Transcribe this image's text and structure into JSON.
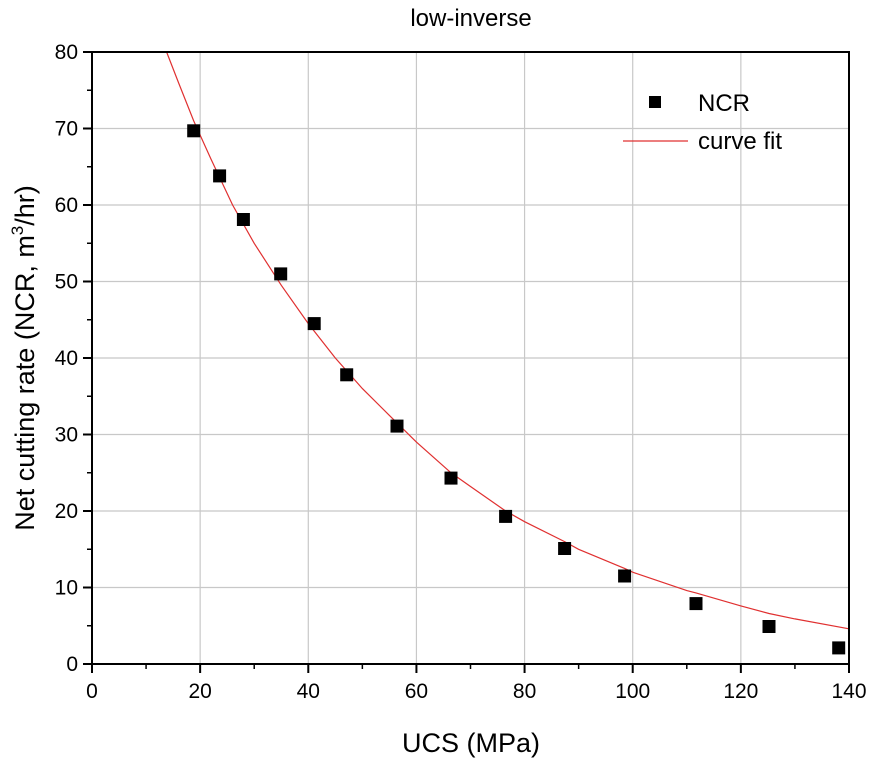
{
  "chart_data": {
    "type": "scatter",
    "title": "low-inverse",
    "xlabel": "UCS (MPa)",
    "ylabel_main": "Net cutting rate (NCR, m",
    "ylabel_sup": "3",
    "ylabel_tail": "/hr)",
    "xlim": [
      0,
      140
    ],
    "ylim": [
      0,
      80
    ],
    "xticks": [
      0,
      20,
      40,
      60,
      80,
      100,
      120,
      140
    ],
    "yticks": [
      0,
      10,
      20,
      30,
      40,
      50,
      60,
      70,
      80
    ],
    "xtick_labels": [
      "0",
      "20",
      "40",
      "60",
      "80",
      "100",
      "120",
      "140"
    ],
    "ytick_labels": [
      "0",
      "10",
      "20",
      "30",
      "40",
      "50",
      "60",
      "70",
      "80"
    ],
    "grid": true,
    "legend_position": "top-right",
    "series": [
      {
        "name": "NCR",
        "kind": "scatter",
        "marker": "square",
        "color": "#000000",
        "points": [
          {
            "x": 18.8,
            "y": 69.7
          },
          {
            "x": 23.6,
            "y": 63.8
          },
          {
            "x": 28.0,
            "y": 58.1
          },
          {
            "x": 34.9,
            "y": 51.0
          },
          {
            "x": 41.1,
            "y": 44.5
          },
          {
            "x": 47.1,
            "y": 37.8
          },
          {
            "x": 56.4,
            "y": 31.1
          },
          {
            "x": 66.4,
            "y": 24.3
          },
          {
            "x": 76.5,
            "y": 19.3
          },
          {
            "x": 87.4,
            "y": 15.1
          },
          {
            "x": 98.5,
            "y": 11.5
          },
          {
            "x": 111.7,
            "y": 7.9
          },
          {
            "x": 125.2,
            "y": 4.9
          },
          {
            "x": 138.1,
            "y": 2.1
          }
        ]
      },
      {
        "name": "curve fit",
        "kind": "line",
        "color": "#e03030",
        "points": [
          {
            "x": 13.8,
            "y": 80.0
          },
          {
            "x": 16,
            "y": 76.0
          },
          {
            "x": 18.8,
            "y": 71.0
          },
          {
            "x": 22,
            "y": 66.0
          },
          {
            "x": 26,
            "y": 60.0
          },
          {
            "x": 30,
            "y": 55.0
          },
          {
            "x": 35,
            "y": 49.5
          },
          {
            "x": 40,
            "y": 44.5
          },
          {
            "x": 45,
            "y": 40.0
          },
          {
            "x": 50,
            "y": 36.0
          },
          {
            "x": 55,
            "y": 32.5
          },
          {
            "x": 60,
            "y": 29.0
          },
          {
            "x": 66.4,
            "y": 25.0
          },
          {
            "x": 70,
            "y": 23.2
          },
          {
            "x": 76.5,
            "y": 20.0
          },
          {
            "x": 80,
            "y": 18.6
          },
          {
            "x": 87.4,
            "y": 16.0
          },
          {
            "x": 90,
            "y": 15.0
          },
          {
            "x": 98.5,
            "y": 12.5
          },
          {
            "x": 100,
            "y": 12.0
          },
          {
            "x": 110,
            "y": 9.6
          },
          {
            "x": 111.7,
            "y": 9.3
          },
          {
            "x": 120,
            "y": 7.6
          },
          {
            "x": 125.2,
            "y": 6.6
          },
          {
            "x": 130,
            "y": 5.9
          },
          {
            "x": 140,
            "y": 4.6
          }
        ]
      }
    ]
  }
}
